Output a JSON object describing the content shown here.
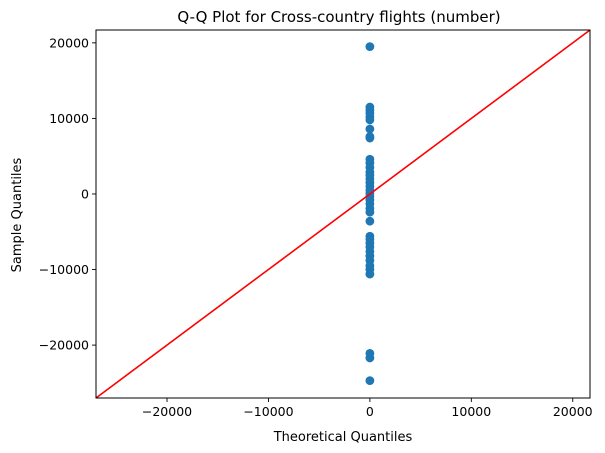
{
  "chart_data": {
    "type": "scatter",
    "title": "Q-Q Plot for Cross-country flights (number)",
    "xlabel": "Theoretical Quantiles",
    "ylabel": "Sample Quantiles",
    "xlim": [
      -27000,
      21700
    ],
    "ylim": [
      -27000,
      21700
    ],
    "xticks": [
      -20000,
      -10000,
      0,
      10000,
      20000
    ],
    "yticks": [
      -20000,
      -10000,
      0,
      10000,
      20000
    ],
    "grid": false,
    "legend": "none",
    "colors": {
      "points": "#1f77b4",
      "line": "#ff0000"
    },
    "reference_line": {
      "x": [
        -27000,
        21700
      ],
      "y": [
        -27000,
        21700
      ]
    },
    "series": [
      {
        "points": [
          {
            "x": 0,
            "y": 19500
          },
          {
            "x": 0,
            "y": 11500
          },
          {
            "x": 0,
            "y": 11100
          },
          {
            "x": 0,
            "y": 10700
          },
          {
            "x": 0,
            "y": 10200
          },
          {
            "x": 0,
            "y": 9800
          },
          {
            "x": 0,
            "y": 8600
          },
          {
            "x": 0,
            "y": 7600
          },
          {
            "x": 0,
            "y": 7400
          },
          {
            "x": 0,
            "y": 4600
          },
          {
            "x": 0,
            "y": 4100
          },
          {
            "x": 0,
            "y": 3500
          },
          {
            "x": 0,
            "y": 2900
          },
          {
            "x": 0,
            "y": 2500
          },
          {
            "x": 0,
            "y": 2000
          },
          {
            "x": 0,
            "y": 1500
          },
          {
            "x": 0,
            "y": 1000
          },
          {
            "x": 0,
            "y": 500
          },
          {
            "x": 0,
            "y": 100
          },
          {
            "x": 0,
            "y": -300
          },
          {
            "x": 0,
            "y": -800
          },
          {
            "x": 0,
            "y": -1300
          },
          {
            "x": 0,
            "y": -1900
          },
          {
            "x": 0,
            "y": -2400
          },
          {
            "x": 0,
            "y": -3600
          },
          {
            "x": 0,
            "y": -5600
          },
          {
            "x": 0,
            "y": -6000
          },
          {
            "x": 0,
            "y": -6500
          },
          {
            "x": 0,
            "y": -7000
          },
          {
            "x": 0,
            "y": -7600
          },
          {
            "x": 0,
            "y": -8200
          },
          {
            "x": 0,
            "y": -8800
          },
          {
            "x": 0,
            "y": -9500
          },
          {
            "x": 0,
            "y": -10000
          },
          {
            "x": 0,
            "y": -10600
          },
          {
            "x": 0,
            "y": -21100
          },
          {
            "x": 0,
            "y": -21700
          },
          {
            "x": 0,
            "y": -24700
          }
        ]
      }
    ]
  }
}
